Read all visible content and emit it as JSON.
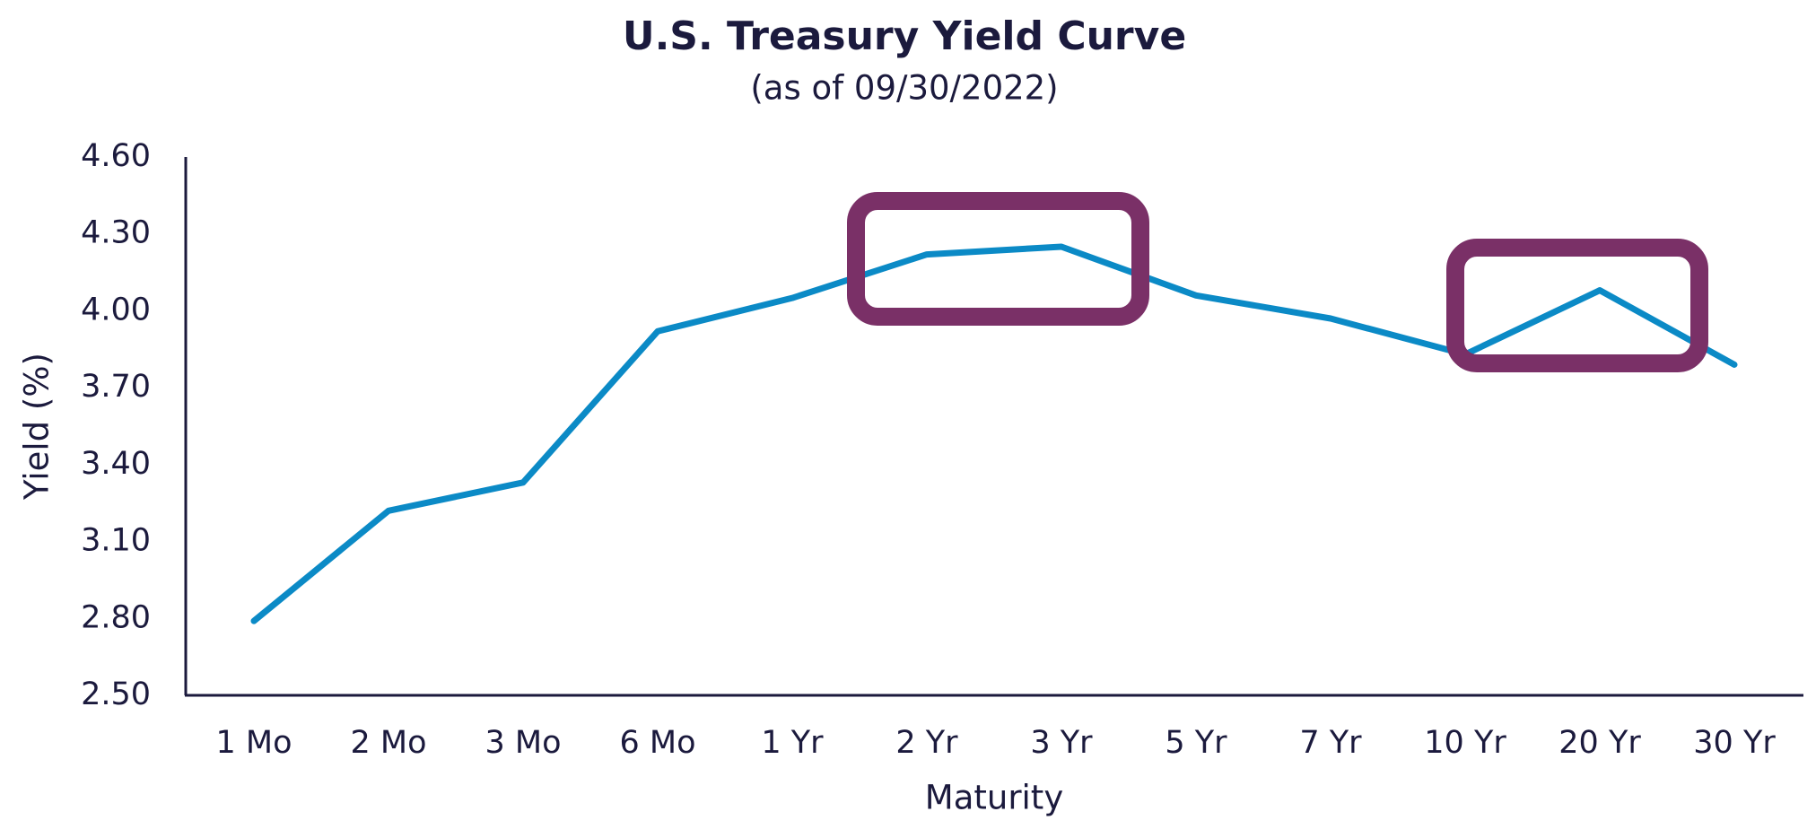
{
  "chart_data": {
    "type": "line",
    "title": "U.S. Treasury Yield Curve",
    "subtitle": "(as of 09/30/2022)",
    "x_label": "Maturity",
    "y_label": "Yield (%)",
    "categories": [
      "1 Mo",
      "2 Mo",
      "3 Mo",
      "6 Mo",
      "1 Yr",
      "2 Yr",
      "3 Yr",
      "5 Yr",
      "7 Yr",
      "10 Yr",
      "20 Yr",
      "30 Yr"
    ],
    "values": [
      2.79,
      3.22,
      3.33,
      3.92,
      4.05,
      4.22,
      4.25,
      4.06,
      3.97,
      3.83,
      4.08,
      3.79
    ],
    "color": "#0b8ac6",
    "ylim": [
      2.5,
      4.6
    ],
    "yticks": [
      {
        "value": 2.5,
        "label": "2.50"
      },
      {
        "value": 2.8,
        "label": "2.80"
      },
      {
        "value": 3.1,
        "label": "3.10"
      },
      {
        "value": 3.4,
        "label": "3.40"
      },
      {
        "value": 3.7,
        "label": "3.70"
      },
      {
        "value": 4.0,
        "label": "4.00"
      },
      {
        "value": 4.3,
        "label": "4.30"
      },
      {
        "value": 4.6,
        "label": "4.60"
      }
    ],
    "grid": false
  }
}
